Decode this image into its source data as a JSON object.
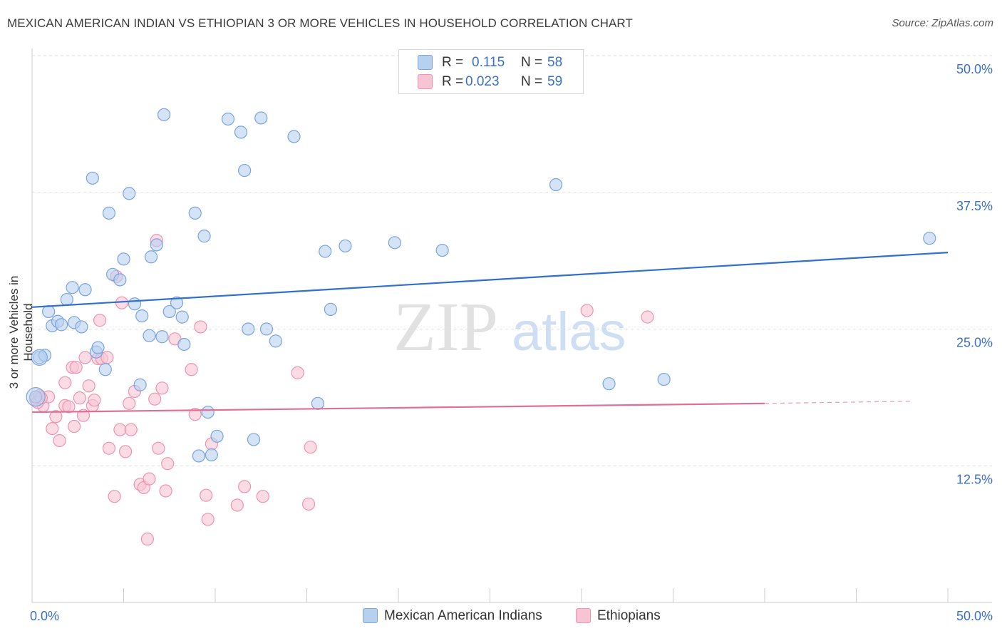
{
  "title": "MEXICAN AMERICAN INDIAN VS ETHIOPIAN 3 OR MORE VEHICLES IN HOUSEHOLD CORRELATION CHART",
  "source": "Source: ZipAtlas.com",
  "watermark": {
    "zip": "ZIP",
    "atlas": "atlas"
  },
  "legend": {
    "rows": [
      {
        "r_label": "R =",
        "r_value": "0.115",
        "n_label": "N =",
        "n_value": "58"
      },
      {
        "r_label": "R =",
        "r_value": "0.023",
        "n_label": "N =",
        "n_value": "59"
      }
    ]
  },
  "bottom_legend": [
    "Mexican American Indians",
    "Ethiopians"
  ],
  "colors": {
    "blue_fill": "#b8d0f0",
    "blue_stroke": "#7aa4dc",
    "blue_line": "#2f6fcf",
    "pink_fill": "#f8c4d4",
    "pink_stroke": "#ee93b1",
    "pink_line": "#e06f98",
    "grid": "#dddddd",
    "tick_text": "#3a70c8"
  },
  "chart_data": {
    "type": "scatter",
    "title": "MEXICAN AMERICAN INDIAN VS ETHIOPIAN 3 OR MORE VEHICLES IN HOUSEHOLD CORRELATION CHART",
    "xlabel": "",
    "ylabel": "3 or more Vehicles in Household",
    "xlim": [
      0,
      50
    ],
    "ylim": [
      0,
      50
    ],
    "x_tick_labels": [
      {
        "value": 0,
        "label": "0.0%"
      },
      {
        "value": 50,
        "label": "50.0%"
      }
    ],
    "y_tick_labels": [
      {
        "value": 12.5,
        "label": "12.5%"
      },
      {
        "value": 25,
        "label": "25.0%"
      },
      {
        "value": 37.5,
        "label": "37.5%"
      },
      {
        "value": 50,
        "label": "50.0%"
      }
    ],
    "series": [
      {
        "name": "Mexican American Indians",
        "color": "blue",
        "r": 0.115,
        "n": 58,
        "trend": {
          "x": [
            0,
            50
          ],
          "y": [
            27.0,
            32.0
          ]
        },
        "points": [
          [
            0.2,
            18.8
          ],
          [
            0.4,
            22.4
          ],
          [
            0.7,
            22.6
          ],
          [
            0.9,
            26.6
          ],
          [
            1.1,
            25.3
          ],
          [
            1.4,
            25.7
          ],
          [
            1.6,
            25.4
          ],
          [
            1.9,
            27.7
          ],
          [
            2.2,
            28.8
          ],
          [
            2.3,
            25.6
          ],
          [
            2.7,
            25.2
          ],
          [
            2.9,
            28.6
          ],
          [
            3.3,
            38.8
          ],
          [
            3.5,
            22.9
          ],
          [
            3.6,
            23.3
          ],
          [
            4.0,
            21.3
          ],
          [
            4.2,
            35.6
          ],
          [
            4.4,
            30.0
          ],
          [
            4.8,
            29.5
          ],
          [
            5.0,
            31.4
          ],
          [
            5.3,
            37.4
          ],
          [
            5.6,
            27.3
          ],
          [
            5.9,
            19.9
          ],
          [
            6.0,
            26.2
          ],
          [
            6.4,
            24.4
          ],
          [
            6.5,
            31.6
          ],
          [
            6.8,
            32.7
          ],
          [
            7.1,
            24.3
          ],
          [
            7.2,
            44.6
          ],
          [
            7.5,
            26.6
          ],
          [
            7.9,
            27.4
          ],
          [
            8.2,
            26.1
          ],
          [
            8.3,
            23.6
          ],
          [
            8.9,
            35.6
          ],
          [
            9.1,
            13.4
          ],
          [
            9.4,
            33.5
          ],
          [
            9.6,
            17.4
          ],
          [
            9.8,
            13.5
          ],
          [
            10.1,
            15.2
          ],
          [
            10.7,
            44.2
          ],
          [
            11.4,
            43.0
          ],
          [
            11.6,
            39.5
          ],
          [
            11.8,
            25.0
          ],
          [
            12.1,
            14.9
          ],
          [
            12.5,
            44.3
          ],
          [
            12.8,
            25.0
          ],
          [
            13.3,
            23.9
          ],
          [
            14.3,
            42.6
          ],
          [
            15.6,
            18.2
          ],
          [
            16.0,
            32.1
          ],
          [
            16.3,
            26.8
          ],
          [
            17.1,
            32.6
          ],
          [
            19.8,
            32.9
          ],
          [
            22.4,
            32.2
          ],
          [
            28.6,
            38.2
          ],
          [
            31.5,
            20.0
          ],
          [
            34.5,
            20.4
          ],
          [
            49.0,
            33.3
          ]
        ]
      },
      {
        "name": "Ethiopians",
        "color": "pink",
        "r": 0.023,
        "n": 59,
        "trend": {
          "x": [
            0,
            40
          ],
          "y": [
            17.4,
            18.2
          ]
        },
        "trend_dashed": {
          "x": [
            40,
            48
          ],
          "y": [
            18.2,
            18.4
          ]
        },
        "points": [
          [
            0.2,
            18.6
          ],
          [
            0.4,
            18.9
          ],
          [
            0.6,
            18.0
          ],
          [
            0.9,
            18.8
          ],
          [
            1.1,
            15.9
          ],
          [
            1.3,
            17.0
          ],
          [
            1.5,
            14.8
          ],
          [
            1.8,
            18.0
          ],
          [
            1.8,
            20.1
          ],
          [
            2.0,
            17.9
          ],
          [
            2.2,
            21.5
          ],
          [
            2.3,
            16.1
          ],
          [
            2.4,
            21.5
          ],
          [
            2.6,
            18.7
          ],
          [
            2.8,
            17.1
          ],
          [
            2.9,
            22.4
          ],
          [
            3.1,
            19.8
          ],
          [
            3.3,
            18.0
          ],
          [
            3.4,
            18.5
          ],
          [
            3.6,
            22.3
          ],
          [
            3.7,
            25.8
          ],
          [
            3.8,
            22.3
          ],
          [
            4.1,
            22.4
          ],
          [
            4.2,
            14.1
          ],
          [
            4.5,
            9.7
          ],
          [
            4.6,
            29.8
          ],
          [
            4.8,
            15.8
          ],
          [
            4.9,
            27.4
          ],
          [
            5.1,
            13.8
          ],
          [
            5.3,
            18.2
          ],
          [
            5.4,
            15.8
          ],
          [
            5.6,
            19.3
          ],
          [
            5.9,
            10.8
          ],
          [
            6.1,
            10.5
          ],
          [
            6.3,
            5.8
          ],
          [
            6.4,
            11.3
          ],
          [
            6.7,
            18.6
          ],
          [
            6.8,
            33.1
          ],
          [
            6.9,
            14.1
          ],
          [
            7.1,
            19.6
          ],
          [
            7.3,
            10.2
          ],
          [
            7.4,
            12.7
          ],
          [
            7.8,
            24.1
          ],
          [
            8.7,
            21.3
          ],
          [
            8.9,
            17.2
          ],
          [
            9.2,
            25.2
          ],
          [
            9.5,
            9.8
          ],
          [
            9.6,
            7.6
          ],
          [
            9.8,
            14.5
          ],
          [
            11.2,
            8.9
          ],
          [
            11.6,
            10.6
          ],
          [
            12.6,
            9.7
          ],
          [
            14.5,
            21.0
          ],
          [
            15.1,
            9.0
          ],
          [
            15.2,
            14.2
          ],
          [
            30.3,
            26.7
          ],
          [
            33.6,
            26.1
          ],
          [
            0.3,
            18.3
          ],
          [
            0.5,
            18.7
          ]
        ]
      }
    ]
  }
}
